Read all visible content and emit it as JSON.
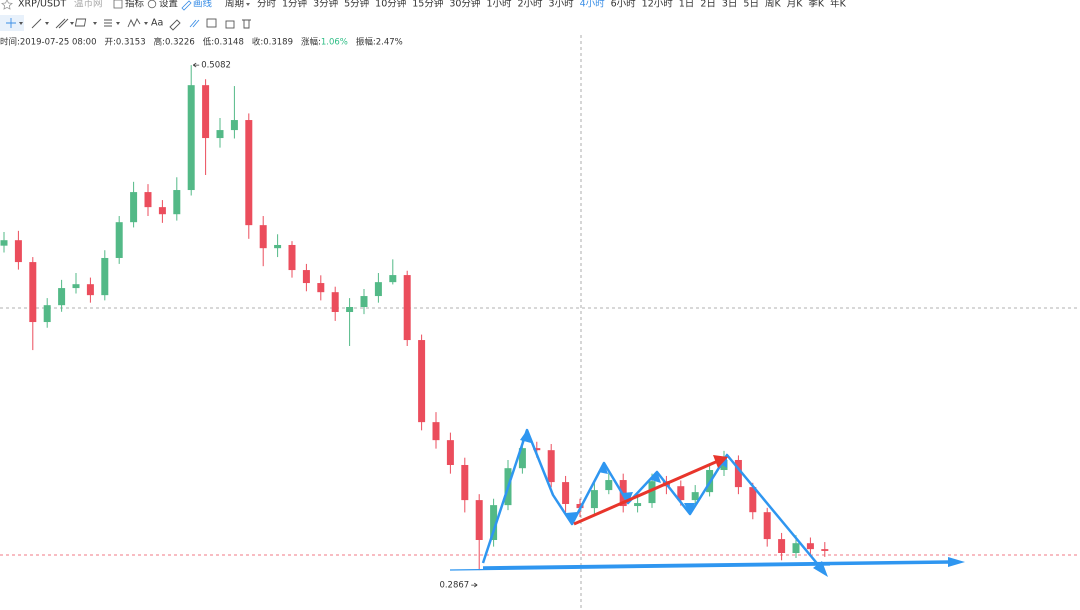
{
  "header": {
    "symbol": "XRP/USDT",
    "exchange": "温币网",
    "tools": [
      "指标",
      "设置",
      "画线"
    ],
    "period_label": "周期",
    "periods": [
      "分时",
      "1分钟",
      "3分钟",
      "5分钟",
      "10分钟",
      "15分钟",
      "30分钟",
      "1小时",
      "2小时",
      "3小时",
      "4小时",
      "6小时",
      "12小时",
      "1日",
      "2日",
      "3日",
      "5日",
      "周K",
      "月K",
      "季K",
      "年K"
    ],
    "active_period": 10,
    "font_tool": "Aa"
  },
  "info": [
    {
      "label": "时间:",
      "value": "2019-07-25 08:00"
    },
    {
      "label": "开:",
      "value": "0.3153"
    },
    {
      "label": "高:",
      "value": "0.3226"
    },
    {
      "label": "低:",
      "value": "0.3148"
    },
    {
      "label": "收:",
      "value": "0.3189"
    },
    {
      "label": "涨幅:",
      "value": "1.06%",
      "color": "#2ebd85"
    },
    {
      "label": "振幅:",
      "value": "2.47%"
    }
  ],
  "chart_data": {
    "type": "candlestick",
    "up_color": "#53b987",
    "down_color": "#eb4d5c",
    "ylim": [
      0.2692,
      0.5214
    ],
    "open": [
      0.429,
      0.4314,
      0.4218,
      0.3955,
      0.4029,
      0.4104,
      0.4121,
      0.4073,
      0.4236,
      0.4393,
      0.4525,
      0.4459,
      0.4428,
      0.4534,
      0.4994,
      0.4762,
      0.4797,
      0.4841,
      0.438,
      0.4279,
      0.4293,
      0.4183,
      0.4126,
      0.4086,
      0.3999,
      0.4021,
      0.4069,
      0.413,
      0.4161,
      0.3876,
      0.3516,
      0.3437,
      0.3328,
      0.3174,
      0.2999,
      0.3152,
      0.3314,
      0.3402,
      0.3393,
      0.3253,
      0.3157,
      0.3139,
      0.3218,
      0.3262,
      0.3148,
      0.3161,
      0.3257,
      0.3235,
      0.3174,
      0.3209,
      0.3306,
      0.335,
      0.3231,
      0.3121,
      0.3003,
      0.2942,
      0.2985,
      0.2959
    ],
    "high": [
      0.435,
      0.4355,
      0.424,
      0.406,
      0.414,
      0.417,
      0.415,
      0.427,
      0.442,
      0.457,
      0.456,
      0.449,
      0.459,
      0.5082,
      0.502,
      0.485,
      0.499,
      0.487,
      0.442,
      0.434,
      0.431,
      0.421,
      0.416,
      0.411,
      0.406,
      0.41,
      0.417,
      0.423,
      0.418,
      0.39,
      0.356,
      0.347,
      0.336,
      0.32,
      0.318,
      0.335,
      0.344,
      0.343,
      0.342,
      0.328,
      0.318,
      0.325,
      0.33,
      0.329,
      0.32,
      0.329,
      0.328,
      0.326,
      0.324,
      0.333,
      0.339,
      0.337,
      0.325,
      0.314,
      0.303,
      0.302,
      0.301,
      0.299
    ],
    "low": [
      0.426,
      0.4185,
      0.3832,
      0.393,
      0.4,
      0.408,
      0.404,
      0.405,
      0.421,
      0.437,
      0.442,
      0.439,
      0.44,
      0.451,
      0.46,
      0.472,
      0.476,
      0.432,
      0.42,
      0.424,
      0.415,
      0.409,
      0.405,
      0.396,
      0.385,
      0.399,
      0.404,
      0.412,
      0.385,
      0.348,
      0.34,
      0.329,
      0.312,
      0.2867,
      0.297,
      0.313,
      0.329,
      0.336,
      0.323,
      0.312,
      0.31,
      0.311,
      0.32,
      0.312,
      0.312,
      0.314,
      0.32,
      0.315,
      0.315,
      0.319,
      0.328,
      0.32,
      0.309,
      0.297,
      0.291,
      0.292,
      0.293,
      0.2925
    ],
    "close": [
      0.4314,
      0.4218,
      0.3955,
      0.4029,
      0.4104,
      0.4121,
      0.4073,
      0.4236,
      0.4393,
      0.4525,
      0.4459,
      0.4428,
      0.4534,
      0.4994,
      0.4762,
      0.4797,
      0.4841,
      0.438,
      0.4279,
      0.4293,
      0.4183,
      0.4126,
      0.4086,
      0.3999,
      0.4021,
      0.4069,
      0.413,
      0.4161,
      0.3876,
      0.3516,
      0.3437,
      0.3328,
      0.3174,
      0.2999,
      0.3152,
      0.3314,
      0.3402,
      0.3393,
      0.3253,
      0.3157,
      0.3139,
      0.3218,
      0.3262,
      0.3148,
      0.3161,
      0.3257,
      0.3235,
      0.3174,
      0.3209,
      0.3306,
      0.335,
      0.3231,
      0.3121,
      0.3003,
      0.2942,
      0.2985,
      0.2959,
      0.2951
    ]
  }
}
